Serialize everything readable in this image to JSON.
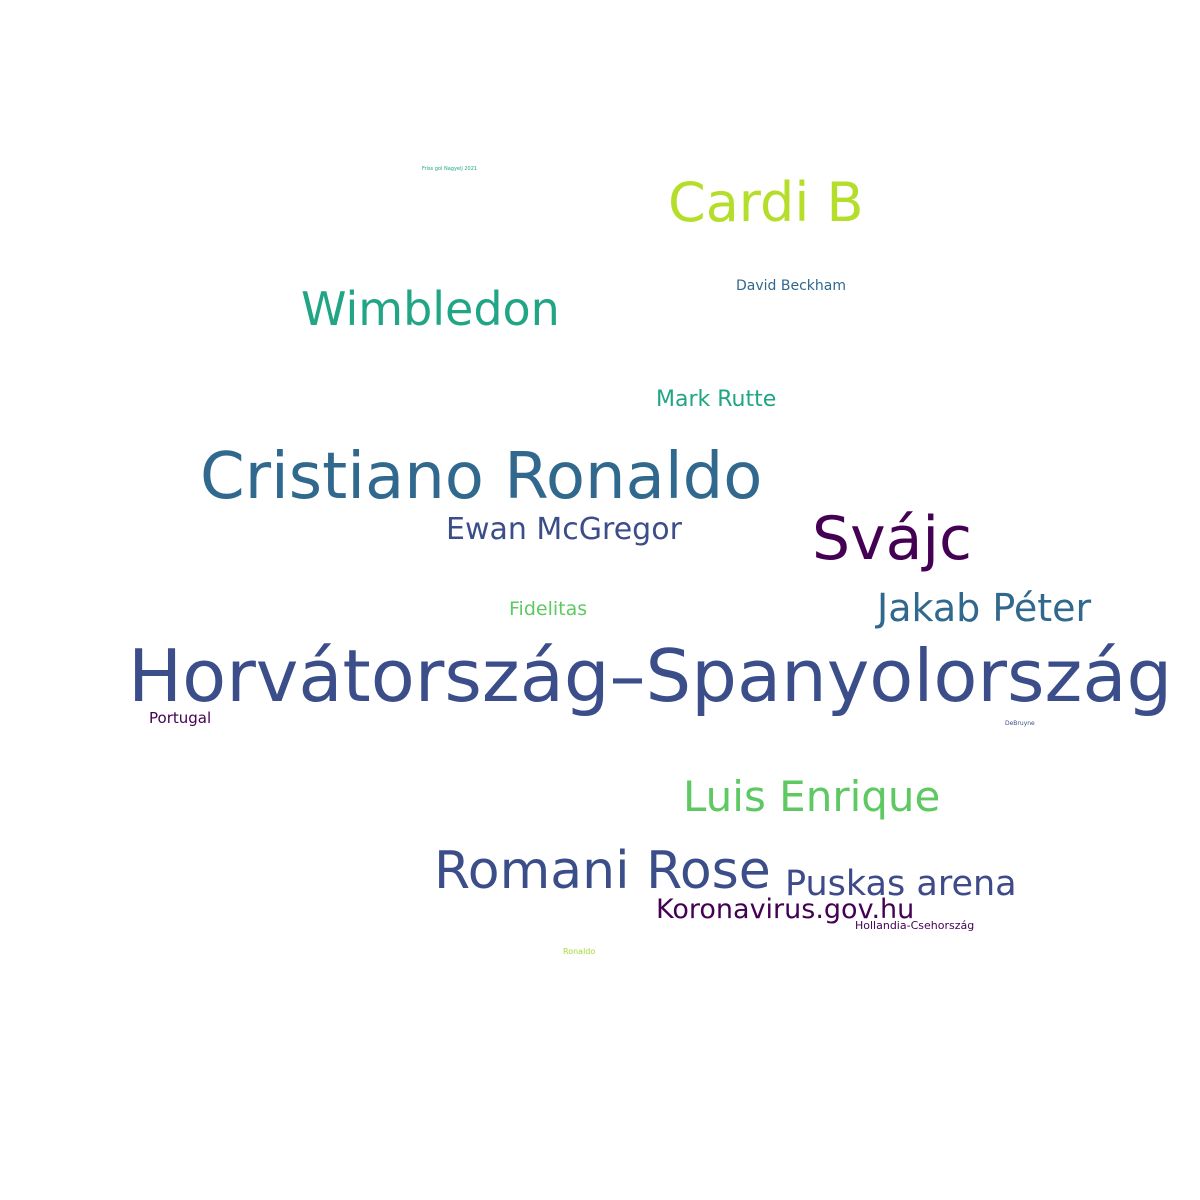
{
  "word_cloud": {
    "words": [
      {
        "text": "Horvátország–Spanyolország",
        "color": "#3b4e8a"
      },
      {
        "text": "Cristiano Ronaldo",
        "color": "#31688e"
      },
      {
        "text": "Svájc",
        "color": "#440154"
      },
      {
        "text": "Romani Rose",
        "color": "#3b4e8a"
      },
      {
        "text": "Cardi B",
        "color": "#b5de2b"
      },
      {
        "text": "Wimbledon",
        "color": "#21a585"
      },
      {
        "text": "Luis Enrique",
        "color": "#5ec962"
      },
      {
        "text": "Jakab Péter",
        "color": "#31688e"
      },
      {
        "text": "Puskas arena",
        "color": "#3e4a89"
      },
      {
        "text": "Koronavirus.gov.hu",
        "color": "#440154"
      },
      {
        "text": "Ewan McGregor",
        "color": "#3b4e8a"
      },
      {
        "text": "Mark Rutte",
        "color": "#21a585"
      },
      {
        "text": "Fidelitas",
        "color": "#5ec962"
      },
      {
        "text": "David Beckham",
        "color": "#31688e"
      },
      {
        "text": "Portugal",
        "color": "#440154"
      },
      {
        "text": "Hollandia-Csehország",
        "color": "#440154"
      },
      {
        "text": "Ronaldo",
        "color": "#a0da39"
      },
      {
        "text": "DeBruyne",
        "color": "#3b4e8a"
      },
      {
        "text": "Friss gol Nagyelj 2021",
        "color": "#21a585"
      }
    ]
  }
}
